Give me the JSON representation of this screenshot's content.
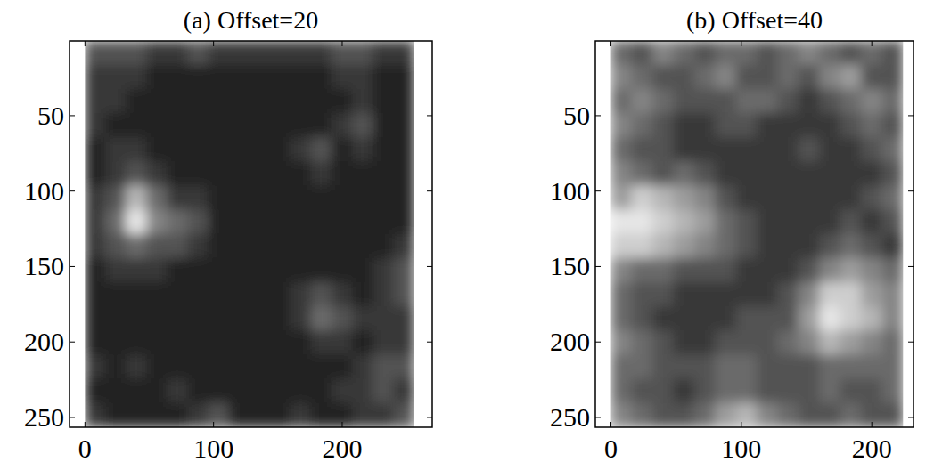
{
  "chart_data": [
    {
      "type": "heatmap",
      "title": "(a) Offset=20",
      "xlim": [
        -12,
        270
      ],
      "ylim": [
        256.5,
        0.5
      ],
      "xticks": [
        0,
        100,
        200
      ],
      "yticks": [
        50,
        100,
        150,
        200,
        250
      ],
      "clim": [
        0,
        10
      ],
      "x_edges": [
        0,
        16,
        32,
        48,
        64,
        80,
        96,
        112,
        128,
        144,
        160,
        176,
        192,
        208,
        224,
        240,
        256
      ],
      "y_edges": [
        0.5,
        16.5,
        32.5,
        48.5,
        64.5,
        80.5,
        96.5,
        112.5,
        128.5,
        144.5,
        160.5,
        176.5,
        192.5,
        208.5,
        224.5,
        240.5,
        256.5
      ],
      "cells": [
        [
          3,
          3,
          3,
          2,
          2,
          3,
          2,
          2,
          2,
          2,
          2,
          2,
          3,
          3,
          2,
          2
        ],
        [
          2,
          2,
          2,
          1,
          1,
          1,
          1,
          1,
          1,
          1,
          1,
          1,
          2,
          2,
          1,
          1
        ],
        [
          2,
          2,
          1,
          1,
          1,
          1,
          1,
          1,
          1,
          1,
          1,
          1,
          1,
          2,
          1,
          1
        ],
        [
          2,
          1,
          1,
          1,
          1,
          1,
          1,
          1,
          1,
          1,
          1,
          1,
          2,
          3,
          1,
          1
        ],
        [
          1,
          2,
          2,
          1,
          1,
          1,
          1,
          1,
          1,
          1,
          2,
          3,
          1,
          2,
          1,
          1
        ],
        [
          1,
          2,
          3,
          2,
          1,
          1,
          1,
          1,
          1,
          1,
          1,
          2,
          1,
          1,
          1,
          1
        ],
        [
          2,
          3,
          7,
          4,
          2,
          2,
          1,
          1,
          1,
          1,
          1,
          1,
          1,
          1,
          1,
          1
        ],
        [
          2,
          4,
          9,
          5,
          4,
          3,
          1,
          1,
          1,
          1,
          1,
          1,
          1,
          1,
          1,
          1
        ],
        [
          2,
          3,
          4,
          3,
          3,
          2,
          1,
          1,
          1,
          1,
          1,
          1,
          1,
          1,
          1,
          2
        ],
        [
          1,
          2,
          2,
          2,
          1,
          1,
          1,
          1,
          1,
          1,
          1,
          1,
          1,
          1,
          2,
          3
        ],
        [
          1,
          1,
          1,
          1,
          1,
          1,
          1,
          1,
          1,
          1,
          2,
          3,
          2,
          1,
          2,
          3
        ],
        [
          1,
          1,
          1,
          1,
          1,
          1,
          1,
          1,
          1,
          1,
          2,
          4,
          3,
          2,
          2,
          2
        ],
        [
          1,
          1,
          1,
          1,
          1,
          1,
          1,
          1,
          1,
          1,
          1,
          2,
          2,
          1,
          2,
          2
        ],
        [
          2,
          1,
          2,
          1,
          1,
          1,
          1,
          1,
          1,
          1,
          1,
          1,
          1,
          2,
          3,
          3
        ],
        [
          1,
          1,
          1,
          1,
          2,
          1,
          1,
          1,
          1,
          1,
          1,
          1,
          2,
          2,
          3,
          2
        ],
        [
          2,
          1,
          1,
          1,
          1,
          2,
          3,
          1,
          1,
          1,
          2,
          1,
          1,
          2,
          2,
          3
        ]
      ]
    },
    {
      "type": "heatmap",
      "title": "(b) Offset=40",
      "xlim": [
        -12,
        232
      ],
      "ylim": [
        256.5,
        0.5
      ],
      "xticks": [
        0,
        100,
        200
      ],
      "yticks": [
        50,
        100,
        150,
        200,
        250
      ],
      "clim": [
        0,
        10
      ],
      "x_edges": [
        0,
        16,
        32,
        48,
        64,
        80,
        96,
        112,
        128,
        144,
        160,
        176,
        192,
        208,
        224
      ],
      "y_edges": [
        0.5,
        16.5,
        32.5,
        48.5,
        64.5,
        80.5,
        96.5,
        112.5,
        128.5,
        144.5,
        160.5,
        176.5,
        192.5,
        208.5,
        224.5,
        240.5,
        256.5
      ],
      "cells": [
        [
          4,
          3,
          5,
          4,
          3,
          4,
          4,
          3,
          4,
          5,
          4,
          3,
          4,
          3
        ],
        [
          5,
          4,
          3,
          3,
          4,
          5,
          3,
          3,
          4,
          3,
          5,
          6,
          3,
          3
        ],
        [
          4,
          5,
          4,
          3,
          3,
          3,
          4,
          4,
          3,
          2,
          3,
          4,
          5,
          4
        ],
        [
          5,
          4,
          3,
          2,
          2,
          3,
          3,
          2,
          2,
          2,
          2,
          3,
          4,
          3
        ],
        [
          4,
          3,
          3,
          2,
          2,
          2,
          2,
          2,
          2,
          3,
          2,
          2,
          3,
          4
        ],
        [
          5,
          4,
          3,
          4,
          3,
          2,
          2,
          2,
          2,
          2,
          2,
          2,
          2,
          3
        ],
        [
          6,
          8,
          7,
          6,
          5,
          3,
          2,
          2,
          2,
          2,
          2,
          2,
          3,
          4
        ],
        [
          9,
          9,
          8,
          7,
          6,
          4,
          3,
          2,
          2,
          2,
          2,
          3,
          2,
          3
        ],
        [
          8,
          8,
          7,
          6,
          5,
          4,
          3,
          2,
          2,
          2,
          3,
          4,
          3,
          2
        ],
        [
          5,
          4,
          4,
          3,
          3,
          3,
          2,
          2,
          2,
          3,
          5,
          6,
          5,
          4
        ],
        [
          4,
          3,
          3,
          2,
          2,
          2,
          2,
          2,
          3,
          5,
          8,
          8,
          6,
          5
        ],
        [
          4,
          3,
          2,
          2,
          2,
          2,
          3,
          3,
          3,
          6,
          9,
          8,
          7,
          5
        ],
        [
          5,
          4,
          3,
          2,
          2,
          3,
          3,
          3,
          4,
          5,
          7,
          6,
          5,
          4
        ],
        [
          4,
          4,
          3,
          3,
          3,
          4,
          4,
          3,
          3,
          3,
          4,
          4,
          4,
          4
        ],
        [
          4,
          3,
          3,
          2,
          3,
          4,
          4,
          3,
          3,
          3,
          4,
          3,
          3,
          4
        ],
        [
          5,
          4,
          3,
          3,
          4,
          6,
          7,
          5,
          4,
          3,
          3,
          4,
          3,
          3
        ]
      ]
    }
  ]
}
